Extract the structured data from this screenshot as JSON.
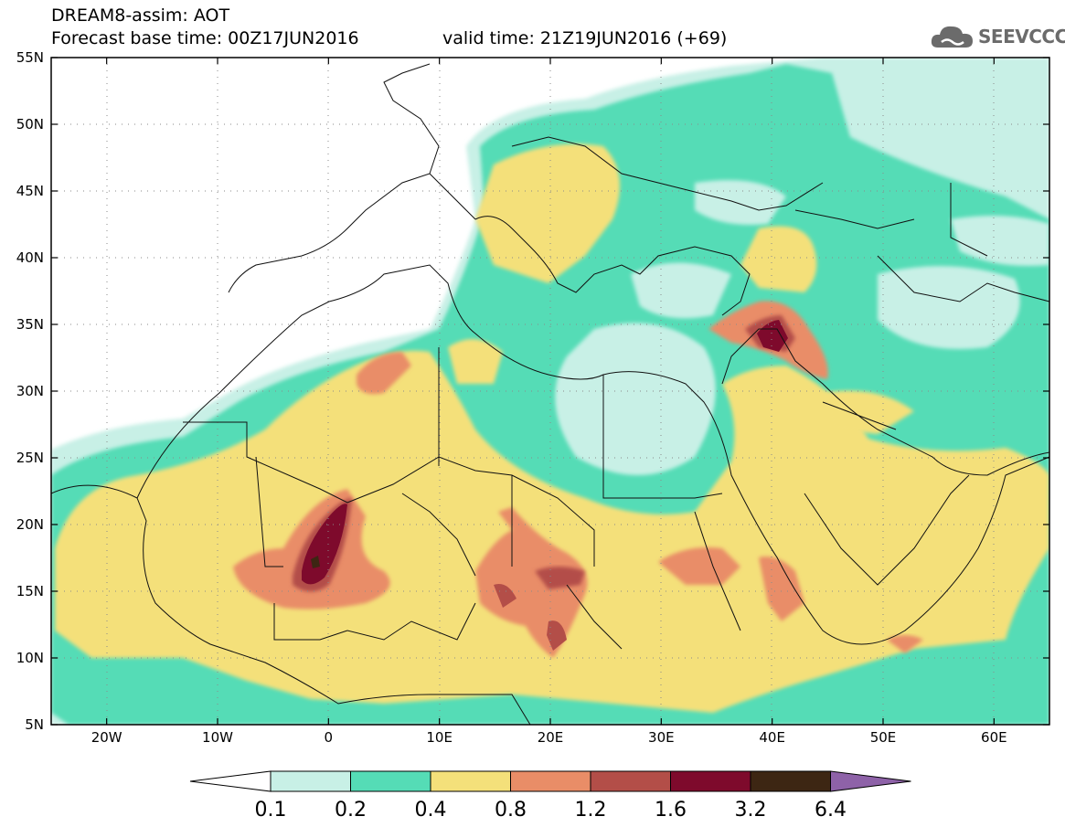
{
  "header": {
    "title_line1": "DREAM8-assim: AOT",
    "title_line2": "Forecast base time: 00Z17JUN2016",
    "valid_time": "valid time: 21Z19JUN2016 (+69)",
    "logo_text": "SEEVCCC"
  },
  "map": {
    "lat_labels": [
      "55N",
      "50N",
      "45N",
      "40N",
      "35N",
      "30N",
      "25N",
      "20N",
      "15N",
      "10N",
      "5N"
    ],
    "lat_values": [
      55,
      50,
      45,
      40,
      35,
      30,
      25,
      20,
      15,
      10,
      5
    ],
    "lon_labels": [
      "20W",
      "10W",
      "0",
      "10E",
      "20E",
      "30E",
      "40E",
      "50E",
      "60E"
    ],
    "lon_values": [
      -20,
      -10,
      0,
      10,
      20,
      30,
      40,
      50,
      60
    ],
    "extent": {
      "lon_min": -25,
      "lon_max": 65,
      "lat_min": 5,
      "lat_max": 55
    },
    "gridlines": "dotted"
  },
  "colorbar": {
    "labels": [
      "0.1",
      "0.2",
      "0.4",
      "0.8",
      "1.2",
      "1.6",
      "3.2",
      "6.4"
    ],
    "colors": [
      "#c8f0e6",
      "#55dcb6",
      "#f4e07a",
      "#e98d67",
      "#b34e48",
      "#7e0a2c",
      "#3d2613",
      "#8e62a8"
    ],
    "under_color": "#ffffff"
  }
}
